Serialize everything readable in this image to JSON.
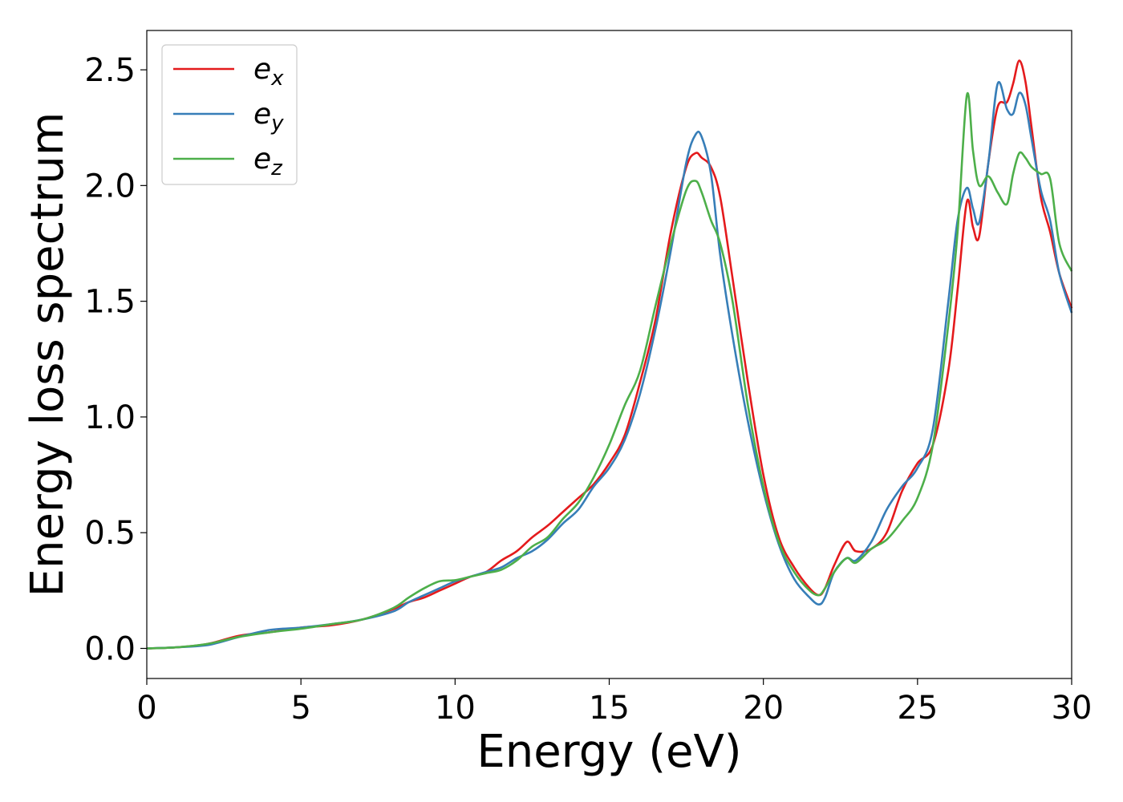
{
  "chart_data": {
    "type": "line",
    "title": "",
    "xlabel": "Energy (eV)",
    "ylabel": "Energy loss spectrum",
    "xlim": [
      0,
      30
    ],
    "ylim": [
      -0.13,
      2.67
    ],
    "xticks": [
      0,
      5,
      10,
      15,
      20,
      25,
      30
    ],
    "xtick_labels": [
      "0",
      "5",
      "10",
      "15",
      "20",
      "25",
      "30"
    ],
    "yticks": [
      0.0,
      0.5,
      1.0,
      1.5,
      2.0,
      2.5
    ],
    "ytick_labels": [
      "0.0",
      "0.5",
      "1.0",
      "1.5",
      "2.0",
      "2.5"
    ],
    "grid": false,
    "legend_position": "top-left",
    "series": [
      {
        "name": "e_x",
        "label_base": "e",
        "label_sub": "x",
        "color": "#e41a1c",
        "x": [
          0,
          1,
          2,
          3,
          4,
          5,
          6,
          7,
          8,
          8.5,
          9,
          9.5,
          10,
          10.5,
          11,
          11.5,
          12,
          12.5,
          13,
          13.5,
          14,
          14.5,
          15,
          15.5,
          16,
          16.5,
          17,
          17.5,
          17.8,
          18,
          18.3,
          18.6,
          19,
          19.5,
          20,
          20.5,
          21,
          21.5,
          21.8,
          22,
          22.3,
          22.7,
          23,
          23.5,
          24,
          24.5,
          25,
          25.5,
          26,
          26.3,
          26.6,
          26.8,
          27,
          27.3,
          27.6,
          27.9,
          28.1,
          28.3,
          28.5,
          28.7,
          29,
          29.3,
          29.6,
          30
        ],
        "y": [
          0.0,
          0.005,
          0.02,
          0.055,
          0.07,
          0.09,
          0.1,
          0.125,
          0.17,
          0.2,
          0.22,
          0.25,
          0.28,
          0.31,
          0.33,
          0.38,
          0.42,
          0.48,
          0.53,
          0.59,
          0.65,
          0.71,
          0.8,
          0.92,
          1.15,
          1.42,
          1.8,
          2.08,
          2.14,
          2.12,
          2.08,
          1.95,
          1.6,
          1.15,
          0.75,
          0.48,
          0.35,
          0.26,
          0.23,
          0.26,
          0.36,
          0.46,
          0.42,
          0.43,
          0.5,
          0.68,
          0.8,
          0.88,
          1.2,
          1.55,
          1.93,
          1.82,
          1.78,
          2.1,
          2.34,
          2.36,
          2.44,
          2.54,
          2.45,
          2.25,
          1.95,
          1.8,
          1.62,
          1.47
        ]
      },
      {
        "name": "e_y",
        "label_base": "e",
        "label_sub": "y",
        "color": "#377eb8",
        "x": [
          0,
          1,
          2,
          3,
          4,
          5,
          6,
          7,
          8,
          8.5,
          9,
          9.5,
          10,
          10.5,
          11,
          11.5,
          12,
          12.5,
          13,
          13.5,
          14,
          14.5,
          15,
          15.5,
          16,
          16.5,
          17,
          17.5,
          17.8,
          18,
          18.3,
          18.6,
          19,
          19.5,
          20,
          20.5,
          21,
          21.5,
          21.8,
          22,
          22.3,
          22.7,
          23,
          23.5,
          24,
          24.5,
          25,
          25.5,
          26,
          26.3,
          26.6,
          26.8,
          27,
          27.3,
          27.6,
          27.9,
          28.1,
          28.3,
          28.5,
          28.7,
          29,
          29.3,
          29.6,
          30
        ],
        "y": [
          0.0,
          0.005,
          0.015,
          0.05,
          0.08,
          0.09,
          0.105,
          0.125,
          0.16,
          0.2,
          0.23,
          0.26,
          0.29,
          0.31,
          0.33,
          0.35,
          0.39,
          0.42,
          0.47,
          0.54,
          0.6,
          0.7,
          0.78,
          0.9,
          1.1,
          1.38,
          1.72,
          2.1,
          2.22,
          2.21,
          2.05,
          1.7,
          1.35,
          0.98,
          0.68,
          0.45,
          0.3,
          0.22,
          0.19,
          0.22,
          0.33,
          0.39,
          0.38,
          0.46,
          0.6,
          0.7,
          0.78,
          0.95,
          1.5,
          1.85,
          1.99,
          1.9,
          1.84,
          2.1,
          2.44,
          2.33,
          2.31,
          2.4,
          2.35,
          2.2,
          1.98,
          1.85,
          1.62,
          1.45
        ]
      },
      {
        "name": "e_z",
        "label_base": "e",
        "label_sub": "z",
        "color": "#4daf4a",
        "x": [
          0,
          1,
          2,
          3,
          4,
          5,
          6,
          7,
          8,
          8.5,
          9,
          9.5,
          10,
          10.5,
          11,
          11.5,
          12,
          12.5,
          13,
          13.5,
          14,
          14.5,
          15,
          15.5,
          16,
          16.5,
          17,
          17.5,
          17.8,
          18,
          18.3,
          18.6,
          19,
          19.5,
          20,
          20.5,
          21,
          21.5,
          21.8,
          22,
          22.3,
          22.7,
          23,
          23.5,
          24,
          24.5,
          25,
          25.5,
          26,
          26.3,
          26.6,
          26.8,
          27,
          27.3,
          27.6,
          27.9,
          28.1,
          28.3,
          28.5,
          28.7,
          29,
          29.3,
          29.6,
          30
        ],
        "y": [
          0.0,
          0.005,
          0.02,
          0.05,
          0.07,
          0.085,
          0.105,
          0.125,
          0.175,
          0.22,
          0.26,
          0.29,
          0.295,
          0.31,
          0.325,
          0.34,
          0.38,
          0.44,
          0.48,
          0.56,
          0.63,
          0.74,
          0.88,
          1.05,
          1.2,
          1.48,
          1.75,
          1.98,
          2.02,
          1.97,
          1.85,
          1.75,
          1.5,
          1.05,
          0.7,
          0.46,
          0.33,
          0.25,
          0.23,
          0.26,
          0.33,
          0.39,
          0.37,
          0.43,
          0.47,
          0.55,
          0.65,
          0.88,
          1.4,
          1.8,
          2.39,
          2.15,
          2.0,
          2.04,
          1.97,
          1.92,
          2.05,
          2.14,
          2.12,
          2.08,
          2.05,
          2.03,
          1.75,
          1.63
        ]
      }
    ]
  }
}
